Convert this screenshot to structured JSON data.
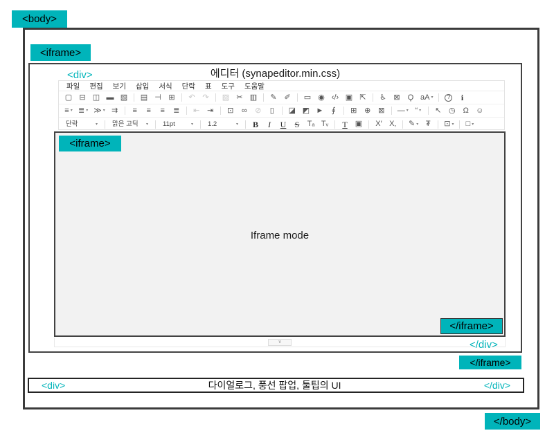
{
  "colors": {
    "accent": "#00b4ba",
    "border_dark": "#3b3b3b"
  },
  "labels": {
    "body_open": "<body>",
    "body_close": "</body>",
    "iframe_open": "<iframe>",
    "iframe_close": "</iframe>",
    "div_open": "<div>",
    "div_close": "</div>",
    "inner_iframe_open": "<iframe>",
    "inner_iframe_close": "</iframe>",
    "dialog_div_open": "<div>",
    "dialog_div_close": "</div>"
  },
  "editor": {
    "title": "에디터 (synapeditor.min.css)",
    "menu_items": [
      {
        "n": "menu-file",
        "g": "파일",
        "c": "menu-item"
      },
      {
        "n": "menu-edit",
        "g": "편집",
        "c": "menu-item"
      },
      {
        "n": "menu-view",
        "g": "보기",
        "c": "menu-item"
      },
      {
        "n": "menu-insert",
        "g": "삽입",
        "c": "menu-item"
      },
      {
        "n": "menu-format",
        "g": "서식",
        "c": "menu-item"
      },
      {
        "n": "menu-paragraph",
        "g": "단락",
        "c": "menu-item"
      },
      {
        "n": "menu-table",
        "g": "표",
        "c": "menu-item"
      },
      {
        "n": "menu-tools",
        "g": "도구",
        "c": "menu-item"
      },
      {
        "n": "menu-help",
        "g": "도움말",
        "c": "menu-item"
      }
    ],
    "toolbar_row1": [
      {
        "n": "new-document-icon",
        "g": "▢"
      },
      {
        "n": "open-document-icon",
        "g": "⊟"
      },
      {
        "n": "save-icon",
        "g": "◫"
      },
      {
        "n": "preview-area-icon",
        "g": "▬"
      },
      {
        "n": "export-document-icon",
        "g": "▧"
      },
      {
        "type": "sep"
      },
      {
        "n": "print-icon",
        "g": "▤"
      },
      {
        "n": "page-break-icon",
        "g": "⊣"
      },
      {
        "n": "print-layout-icon",
        "g": "⊞"
      },
      {
        "type": "sep"
      },
      {
        "n": "undo-icon",
        "g": "↶",
        "d": true
      },
      {
        "n": "redo-icon",
        "g": "↷",
        "d": true
      },
      {
        "type": "sep"
      },
      {
        "n": "paste-icon",
        "g": "▨",
        "d": true
      },
      {
        "n": "cut-icon",
        "g": "✂"
      },
      {
        "n": "copy-icon",
        "g": "▥"
      },
      {
        "type": "sep"
      },
      {
        "n": "track-changes-icon",
        "g": "✎"
      },
      {
        "n": "spell-check-icon",
        "g": "✐"
      },
      {
        "type": "sep"
      },
      {
        "n": "caption-icon",
        "g": "▭"
      },
      {
        "n": "preview-eye-icon",
        "g": "◉"
      },
      {
        "n": "code-view-icon",
        "g": "‹/›"
      },
      {
        "n": "find-document-icon",
        "g": "▣"
      },
      {
        "n": "fullscreen-icon",
        "g": "⇱"
      },
      {
        "type": "sep"
      },
      {
        "n": "accessibility-icon",
        "g": "♿"
      },
      {
        "n": "lock-icon",
        "g": "⊠"
      },
      {
        "n": "search-icon",
        "g": "Ϙ"
      },
      {
        "n": "font-scale-icon",
        "g": "aA",
        "caret": true
      },
      {
        "type": "sep"
      },
      {
        "n": "help-icon",
        "g": "?",
        "c": "circle"
      },
      {
        "n": "info-icon",
        "g": "i",
        "c": "bserif"
      }
    ],
    "toolbar_row2": [
      {
        "n": "unordered-list-icon",
        "g": "≡",
        "caret": true
      },
      {
        "n": "ordered-list-icon",
        "g": "≣",
        "caret": true
      },
      {
        "n": "multilevel-list-icon",
        "g": "≫",
        "caret": true
      },
      {
        "n": "paragraph-indent-icon",
        "g": "⇉"
      },
      {
        "type": "sep"
      },
      {
        "n": "align-left-icon",
        "g": "≡"
      },
      {
        "n": "align-center-icon",
        "g": "≡"
      },
      {
        "n": "align-right-icon",
        "g": "≡"
      },
      {
        "n": "justify-icon",
        "g": "≣"
      },
      {
        "type": "sep"
      },
      {
        "n": "outdent-icon",
        "g": "⇤",
        "d": true
      },
      {
        "n": "indent-icon",
        "g": "⇥"
      },
      {
        "type": "sep"
      },
      {
        "n": "line-style-icon",
        "g": "⊡"
      },
      {
        "n": "link-icon",
        "g": "∞"
      },
      {
        "n": "unlink-icon",
        "g": "⊘",
        "d": true
      },
      {
        "n": "bookmark-icon",
        "g": "▯"
      },
      {
        "type": "sep"
      },
      {
        "n": "image-icon",
        "g": "◪"
      },
      {
        "n": "photo-edit-icon",
        "g": "◩"
      },
      {
        "n": "video-icon",
        "g": "►"
      },
      {
        "n": "attach-file-icon",
        "g": "∮"
      },
      {
        "type": "sep"
      },
      {
        "n": "table-icon",
        "g": "⊞"
      },
      {
        "n": "insert-object-icon",
        "g": "⊕"
      },
      {
        "n": "snapshot-icon",
        "g": "⊠"
      },
      {
        "type": "sep"
      },
      {
        "n": "horizontal-line-icon",
        "g": "—",
        "caret": true
      },
      {
        "n": "blockquote-icon",
        "g": "“",
        "caret": true
      },
      {
        "type": "sep"
      },
      {
        "n": "select-all-icon",
        "g": "↖"
      },
      {
        "n": "timer-icon",
        "g": "◷"
      },
      {
        "n": "special-char-icon",
        "g": "Ω"
      },
      {
        "n": "emoticon-icon",
        "g": "☺"
      }
    ],
    "toolbar_row3": [
      {
        "n": "paragraph-style-select",
        "g": "단락",
        "caret": true,
        "c": "combo",
        "w": 50
      },
      {
        "type": "sep"
      },
      {
        "n": "font-family-select",
        "g": "맑은 고딕",
        "caret": true,
        "c": "combo",
        "w": 56
      },
      {
        "type": "sep"
      },
      {
        "n": "font-size-select",
        "g": "11pt",
        "caret": true,
        "c": "combo",
        "w": 48
      },
      {
        "type": "sep"
      },
      {
        "n": "line-height-select",
        "g": "1.2",
        "caret": true,
        "c": "combo",
        "w": 48
      },
      {
        "type": "sep"
      },
      {
        "n": "bold-icon",
        "g": "B",
        "c": "bserif"
      },
      {
        "n": "italic-icon",
        "g": "I",
        "c": "iserif"
      },
      {
        "n": "underline-icon",
        "g": "U",
        "c": "userif"
      },
      {
        "n": "strikethrough-icon",
        "g": "S",
        "c": "sserif"
      },
      {
        "n": "subscript-style-icon",
        "g": "Tₐ"
      },
      {
        "n": "smallcaps-style-icon",
        "g": "Tᵥ"
      },
      {
        "type": "sep"
      },
      {
        "n": "text-color-icon",
        "g": "T",
        "c": "userif"
      },
      {
        "n": "highlight-color-icon",
        "g": "▣"
      },
      {
        "type": "sep"
      },
      {
        "n": "superscript-icon",
        "g": "X′"
      },
      {
        "n": "subscript-icon",
        "g": "X‚"
      },
      {
        "type": "sep"
      },
      {
        "n": "format-painter-icon",
        "g": "✎",
        "caret": true
      },
      {
        "n": "format-clear-icon",
        "g": "₮"
      },
      {
        "type": "sep"
      },
      {
        "n": "cell-style-icon",
        "g": "⊡",
        "caret": true
      },
      {
        "type": "sep"
      },
      {
        "n": "screen-view-icon",
        "g": "□",
        "caret": true
      }
    ],
    "expand_button_glyph": "∨"
  },
  "iframe_area": {
    "text": "Iframe mode"
  },
  "dialog_bar": {
    "text": "다이얼로그, 풍선 팝업, 툴팁의 UI"
  }
}
